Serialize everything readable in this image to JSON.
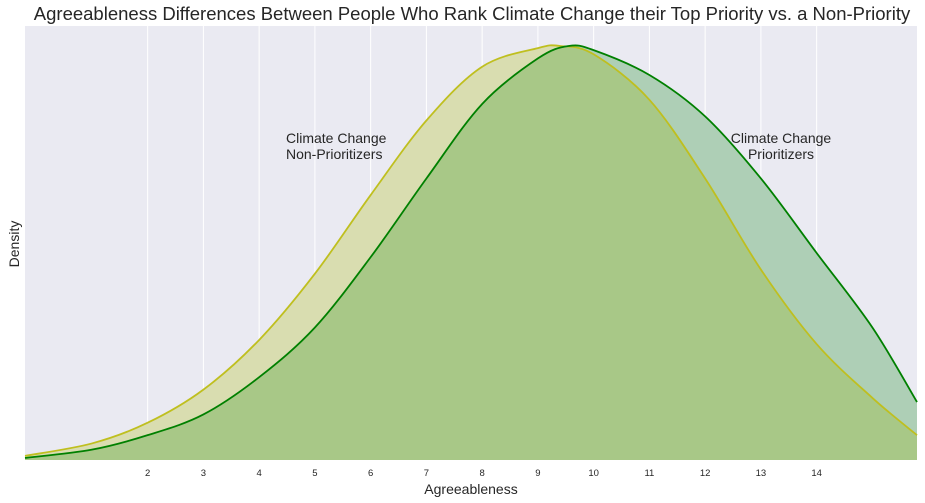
{
  "chart_data": {
    "type": "area",
    "title": "Agreeableness Differences Between People Who Rank Climate Change their Top Priority vs. a Non-Priority",
    "xlabel": "Agreeableness",
    "ylabel": "Density",
    "xlim": [
      -0.2,
      15.8
    ],
    "ylim": [
      0,
      1.0
    ],
    "x_ticks": [
      2,
      3,
      4,
      5,
      6,
      7,
      8,
      9,
      10,
      11,
      12,
      13,
      14
    ],
    "grid": true,
    "y_tick_labels": false,
    "series": [
      {
        "name": "Climate Change Non-Prioritizers",
        "color": "#bfbf1f",
        "fill": "#d9ddb0",
        "x": [
          -0.2,
          1,
          2,
          3,
          4,
          5,
          6,
          7,
          8,
          9,
          9.4,
          10,
          11,
          12,
          13,
          14,
          15,
          15.8
        ],
        "y": [
          0.01,
          0.04,
          0.09,
          0.17,
          0.29,
          0.45,
          0.64,
          0.82,
          0.95,
          0.995,
          1.0,
          0.98,
          0.87,
          0.68,
          0.46,
          0.28,
          0.15,
          0.06
        ]
      },
      {
        "name": "Climate Change Prioritizers",
        "color": "#008000",
        "fill": "#aecfb6",
        "x": [
          -0.2,
          1,
          2,
          3,
          4,
          5,
          6,
          7,
          8,
          9,
          9.55,
          10,
          11,
          12,
          13,
          14,
          15,
          15.8
        ],
        "y": [
          0.005,
          0.025,
          0.06,
          0.11,
          0.2,
          0.32,
          0.49,
          0.68,
          0.86,
          0.97,
          1.0,
          0.99,
          0.93,
          0.83,
          0.68,
          0.5,
          0.32,
          0.14
        ]
      }
    ],
    "overlap_fill": "#a8c887",
    "annotations": [
      {
        "lines": [
          "Climate Change",
          "Non-Prioritizers"
        ]
      },
      {
        "lines": [
          "Climate Change",
          "Prioritizers"
        ]
      }
    ]
  }
}
